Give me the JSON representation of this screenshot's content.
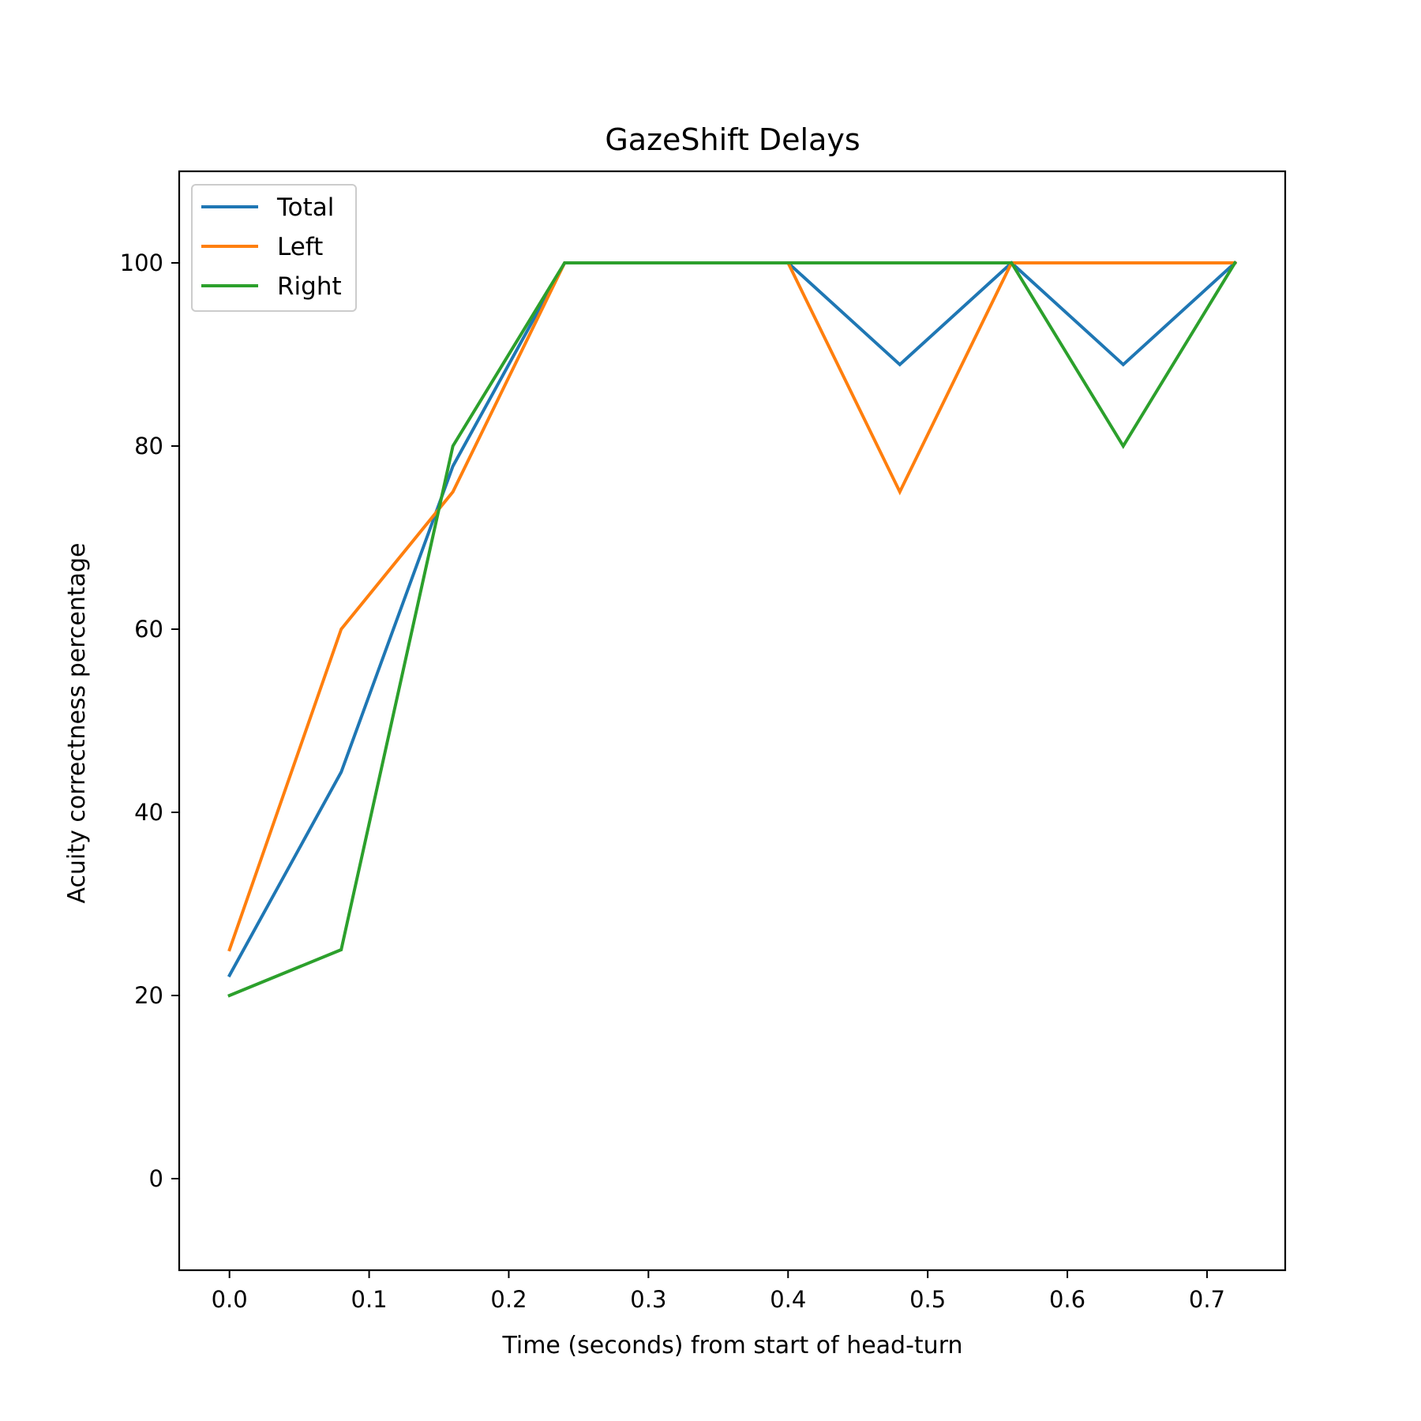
{
  "chart_data": {
    "type": "line",
    "title": "GazeShift Delays",
    "xlabel": "Time (seconds) from start of head-turn",
    "ylabel": "Acuity correctness percentage",
    "x": [
      0.0,
      0.08,
      0.16,
      0.24,
      0.32,
      0.4,
      0.48,
      0.56,
      0.64,
      0.72
    ],
    "series": [
      {
        "name": "Total",
        "color": "#1f77b4",
        "values": [
          22.2,
          44.4,
          77.8,
          100,
          100,
          100,
          88.9,
          100,
          88.9,
          100
        ]
      },
      {
        "name": "Left",
        "color": "#ff7f0e",
        "values": [
          25,
          60,
          75,
          100,
          100,
          100,
          75,
          100,
          100,
          100
        ]
      },
      {
        "name": "Right",
        "color": "#2ca02c",
        "values": [
          20,
          25,
          80,
          100,
          100,
          100,
          100,
          100,
          80,
          100
        ]
      }
    ],
    "xlim": [
      -0.036,
      0.756
    ],
    "ylim": [
      -10,
      110
    ],
    "xticks": [
      0.0,
      0.1,
      0.2,
      0.3,
      0.4,
      0.5,
      0.6,
      0.7
    ],
    "xtick_labels": [
      "0.0",
      "0.1",
      "0.2",
      "0.3",
      "0.4",
      "0.5",
      "0.6",
      "0.7"
    ],
    "yticks": [
      0,
      20,
      40,
      60,
      80,
      100
    ],
    "ytick_labels": [
      "0",
      "20",
      "40",
      "60",
      "80",
      "100"
    ],
    "grid": false,
    "legend_position": "top-left"
  }
}
